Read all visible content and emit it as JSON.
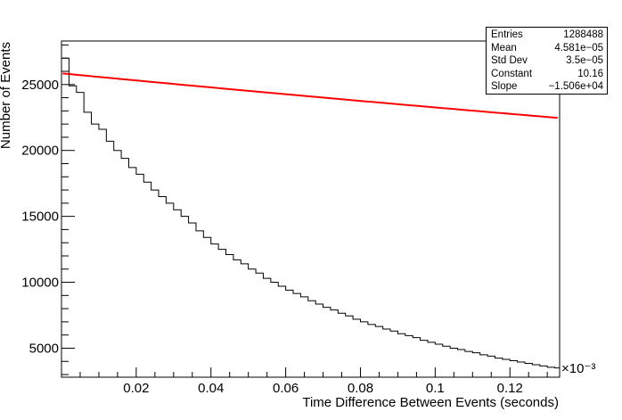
{
  "chart_data": {
    "type": "histogram",
    "xlabel": "Time Difference Between Events (seconds)",
    "ylabel": "Number of Events",
    "x_exponent_label": "×10⁻³",
    "xlim": [
      0,
      0.1333
    ],
    "ylim": [
      2800,
      28300
    ],
    "x_ticks": [
      {
        "value": 0.02,
        "label": "0.02"
      },
      {
        "value": 0.04,
        "label": "0.04"
      },
      {
        "value": 0.06,
        "label": "0.06"
      },
      {
        "value": 0.08,
        "label": "0.08"
      },
      {
        "value": 0.1,
        "label": "0.1"
      },
      {
        "value": 0.12,
        "label": "0.12"
      }
    ],
    "y_ticks": [
      {
        "value": 5000,
        "label": "5000"
      },
      {
        "value": 10000,
        "label": "10000"
      },
      {
        "value": 15000,
        "label": "15000"
      },
      {
        "value": 20000,
        "label": "20000"
      },
      {
        "value": 25000,
        "label": "25000"
      }
    ],
    "histogram": {
      "bin_start": 0,
      "bin_width": 0.002,
      "counts": [
        27000,
        24900,
        24400,
        22900,
        22000,
        21600,
        20700,
        20000,
        19400,
        18700,
        18200,
        17600,
        17000,
        16500,
        16000,
        15500,
        15000,
        14500,
        13900,
        13400,
        12900,
        12500,
        12100,
        11700,
        11400,
        11000,
        10700,
        10300,
        10000,
        9700,
        9400,
        9150,
        8900,
        8600,
        8350,
        8100,
        7900,
        7650,
        7450,
        7200,
        7000,
        6800,
        6650,
        6450,
        6300,
        6100,
        5950,
        5800,
        5600,
        5450,
        5300,
        5150,
        5000,
        4900,
        4750,
        4650,
        4500,
        4400,
        4250,
        4150,
        4050,
        3950,
        3850,
        3750,
        3650,
        3550,
        3500
      ]
    },
    "fit": {
      "type": "expo",
      "constant": 10.16,
      "slope": -15060,
      "color": "#ff0000"
    },
    "stats": [
      {
        "name": "Entries",
        "value": "1288488"
      },
      {
        "name": "Mean",
        "value": "4.581e−05"
      },
      {
        "name": "Std Dev",
        "value": "3.5e−05"
      },
      {
        "name": "Constant",
        "value": "10.16"
      },
      {
        "name": "Slope",
        "value": "−1.506e+04"
      }
    ]
  }
}
